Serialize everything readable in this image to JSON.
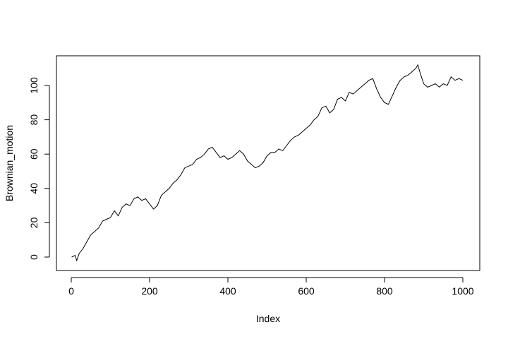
{
  "chart_data": {
    "type": "line",
    "title": "",
    "xlabel": "Index",
    "ylabel": "Brownian_motion",
    "xlim": [
      0,
      1000
    ],
    "ylim": [
      -2,
      113
    ],
    "x_ticks": [
      0,
      200,
      400,
      600,
      800,
      1000
    ],
    "y_ticks": [
      0,
      20,
      40,
      60,
      80,
      100
    ],
    "x_tick_labels": [
      "0",
      "200",
      "400",
      "600",
      "800",
      "1000"
    ],
    "y_tick_labels": [
      "0",
      "20",
      "40",
      "60",
      "80",
      "100"
    ],
    "grid": false,
    "legend": "none",
    "line_color": "#000000",
    "series": [
      {
        "x": [
          1,
          10,
          14,
          20,
          30,
          40,
          50,
          60,
          70,
          80,
          90,
          100,
          110,
          120,
          130,
          140,
          150,
          160,
          170,
          180,
          190,
          200,
          210,
          220,
          230,
          240,
          250,
          260,
          270,
          280,
          290,
          300,
          310,
          320,
          330,
          340,
          350,
          360,
          370,
          380,
          390,
          400,
          410,
          420,
          430,
          440,
          450,
          460,
          470,
          480,
          490,
          500,
          510,
          520,
          530,
          540,
          550,
          560,
          570,
          580,
          590,
          600,
          610,
          620,
          630,
          640,
          650,
          660,
          670,
          680,
          690,
          700,
          710,
          720,
          730,
          740,
          750,
          760,
          770,
          780,
          790,
          800,
          810,
          820,
          830,
          840,
          850,
          860,
          870,
          880,
          885,
          890,
          900,
          910,
          920,
          930,
          940,
          950,
          960,
          970,
          980,
          990,
          1000
        ],
        "y": [
          0,
          1,
          -2,
          2,
          5,
          9,
          13,
          15,
          17,
          21,
          22,
          23,
          27,
          24,
          29,
          31,
          30,
          34,
          35,
          33,
          34,
          31,
          28,
          30,
          36,
          38,
          40,
          43,
          45,
          48,
          52,
          53,
          54,
          57,
          58,
          60,
          63,
          64,
          61,
          58,
          59,
          57,
          58,
          60,
          62,
          60,
          56,
          54,
          52,
          53,
          55,
          59,
          61,
          61,
          63,
          62,
          65,
          68,
          70,
          71,
          73,
          75,
          77,
          80,
          82,
          87,
          88,
          84,
          86,
          92,
          93,
          91,
          96,
          95,
          97,
          99,
          101,
          103,
          104,
          98,
          93,
          90,
          89,
          94,
          99,
          103,
          105,
          106,
          108,
          110,
          112,
          108,
          101,
          99,
          100,
          101,
          99,
          101,
          100,
          105,
          103,
          104,
          103
        ]
      }
    ]
  }
}
